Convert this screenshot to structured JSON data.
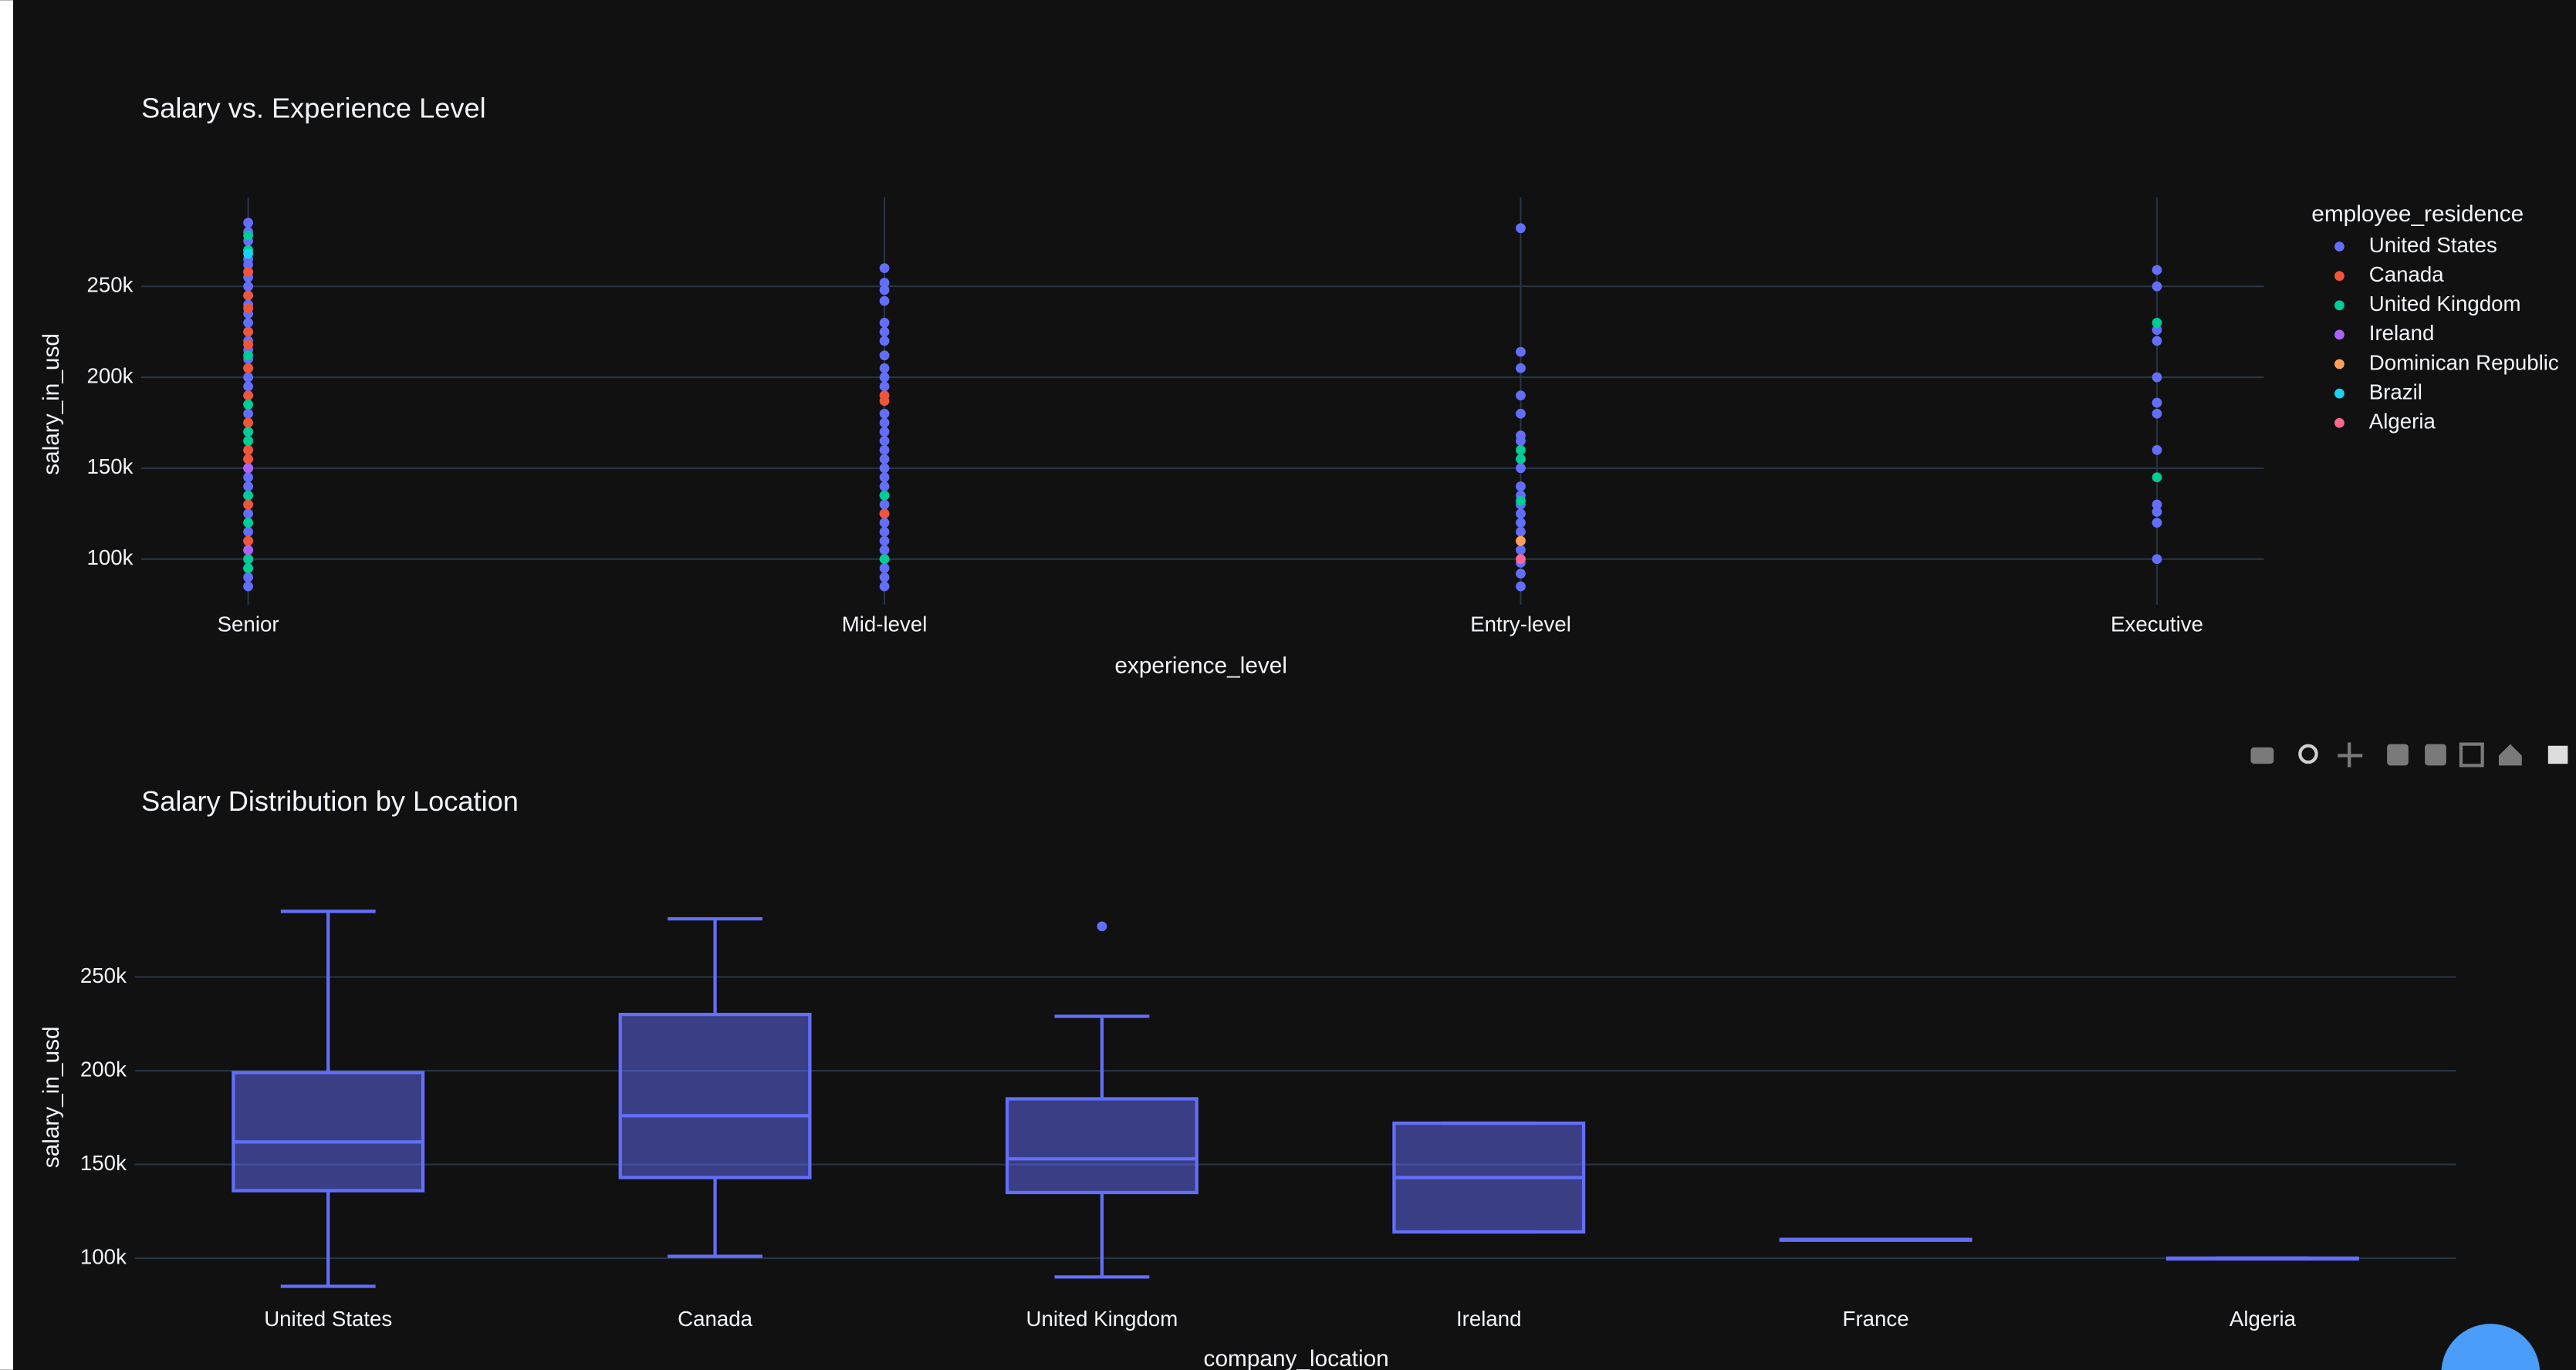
{
  "chart_data": [
    {
      "type": "scatter",
      "title": "Salary vs. Experience Level",
      "x_label": "experience_level",
      "y_label": "salary_in_usd",
      "legend_title": "employee_residence",
      "legend": "right",
      "grid": true,
      "categories": [
        "Senior",
        "Mid-level",
        "Entry-level",
        "Executive"
      ],
      "ylim": [
        75000,
        299000
      ],
      "yticks": [
        {
          "value": 100000,
          "label": "100k"
        },
        {
          "value": 150000,
          "label": "150k"
        },
        {
          "value": 200000,
          "label": "200k"
        },
        {
          "value": 250000,
          "label": "250k"
        }
      ],
      "series": [
        {
          "name": "United States",
          "color": "#636efa",
          "x": [
            "Senior",
            "Senior",
            "Senior",
            "Senior",
            "Senior",
            "Senior",
            "Senior",
            "Senior",
            "Senior",
            "Senior",
            "Senior",
            "Senior",
            "Senior",
            "Senior",
            "Senior",
            "Senior",
            "Senior",
            "Senior",
            "Senior",
            "Senior",
            "Senior",
            "Senior",
            "Senior",
            "Senior",
            "Senior",
            "Senior",
            "Senior",
            "Senior",
            "Senior",
            "Senior",
            "Senior",
            "Senior",
            "Senior",
            "Senior",
            "Senior",
            "Senior",
            "Senior",
            "Senior",
            "Senior",
            "Senior",
            "Senior",
            "Senior",
            "Mid-level",
            "Mid-level",
            "Mid-level",
            "Mid-level",
            "Mid-level",
            "Mid-level",
            "Mid-level",
            "Mid-level",
            "Mid-level",
            "Mid-level",
            "Mid-level",
            "Mid-level",
            "Mid-level",
            "Mid-level",
            "Mid-level",
            "Mid-level",
            "Mid-level",
            "Mid-level",
            "Mid-level",
            "Mid-level",
            "Mid-level",
            "Mid-level",
            "Mid-level",
            "Mid-level",
            "Mid-level",
            "Mid-level",
            "Mid-level",
            "Mid-level",
            "Mid-level",
            "Mid-level",
            "Mid-level",
            "Entry-level",
            "Entry-level",
            "Entry-level",
            "Entry-level",
            "Entry-level",
            "Entry-level",
            "Entry-level",
            "Entry-level",
            "Entry-level",
            "Entry-level",
            "Entry-level",
            "Entry-level",
            "Entry-level",
            "Entry-level",
            "Entry-level",
            "Entry-level",
            "Entry-level",
            "Entry-level",
            "Executive",
            "Executive",
            "Executive",
            "Executive",
            "Executive",
            "Executive",
            "Executive",
            "Executive",
            "Executive",
            "Executive",
            "Executive",
            "Executive"
          ],
          "values": [
            285000,
            280000,
            275000,
            270000,
            265000,
            262000,
            258000,
            255000,
            250000,
            245000,
            240000,
            235000,
            230000,
            225000,
            220000,
            215000,
            210000,
            205000,
            200000,
            195000,
            190000,
            185000,
            180000,
            175000,
            170000,
            165000,
            160000,
            155000,
            150000,
            145000,
            140000,
            135000,
            130000,
            125000,
            120000,
            115000,
            110000,
            105000,
            100000,
            95000,
            90000,
            85000,
            260000,
            252000,
            248000,
            242000,
            230000,
            225000,
            220000,
            212000,
            205000,
            200000,
            195000,
            180000,
            175000,
            170000,
            165000,
            160000,
            155000,
            150000,
            145000,
            140000,
            135000,
            130000,
            125000,
            120000,
            115000,
            110000,
            105000,
            100000,
            95000,
            90000,
            85000,
            282000,
            214000,
            205000,
            190000,
            180000,
            168000,
            165000,
            150000,
            140000,
            135000,
            130000,
            125000,
            120000,
            115000,
            105000,
            98000,
            92000,
            85000,
            259000,
            250000,
            226000,
            220000,
            200000,
            186000,
            180000,
            160000,
            130000,
            126000,
            120000,
            100000
          ]
        },
        {
          "name": "Canada",
          "color": "#EF553B",
          "x": [
            "Senior",
            "Senior",
            "Senior",
            "Senior",
            "Senior",
            "Senior",
            "Senior",
            "Senior",
            "Senior",
            "Senior",
            "Senior",
            "Senior",
            "Mid-level",
            "Mid-level",
            "Mid-level"
          ],
          "values": [
            258000,
            245000,
            238000,
            225000,
            218000,
            205000,
            190000,
            175000,
            160000,
            155000,
            130000,
            110000,
            190000,
            187000,
            125000
          ]
        },
        {
          "name": "United Kingdom",
          "color": "#00cc96",
          "x": [
            "Senior",
            "Senior",
            "Senior",
            "Senior",
            "Senior",
            "Senior",
            "Senior",
            "Senior",
            "Senior",
            "Senior",
            "Senior",
            "Mid-level",
            "Mid-level",
            "Entry-level",
            "Entry-level",
            "Entry-level",
            "Executive",
            "Executive"
          ],
          "values": [
            278000,
            270000,
            212000,
            185000,
            170000,
            165000,
            150000,
            135000,
            120000,
            100000,
            95000,
            135000,
            100000,
            160000,
            155000,
            132000,
            230000,
            145000
          ]
        },
        {
          "name": "Ireland",
          "color": "#ab63fa",
          "x": [
            "Senior",
            "Senior"
          ],
          "values": [
            150000,
            105000
          ]
        },
        {
          "name": "Dominican Republic",
          "color": "#FFA15A",
          "x": [
            "Entry-level"
          ],
          "values": [
            110000
          ]
        },
        {
          "name": "Brazil",
          "color": "#19d3f3",
          "x": [
            "Senior"
          ],
          "values": [
            268000
          ]
        },
        {
          "name": "Algeria",
          "color": "#FF6692",
          "x": [
            "Entry-level"
          ],
          "values": [
            100000
          ]
        }
      ]
    },
    {
      "type": "box",
      "title": "Salary Distribution by Location",
      "x_label": "company_location",
      "y_label": "salary_in_usd",
      "color": "#636efa",
      "grid": true,
      "categories": [
        "United States",
        "Canada",
        "United Kingdom",
        "Ireland",
        "France",
        "Algeria"
      ],
      "ylim": [
        79000,
        298000
      ],
      "yticks": [
        {
          "value": 100000,
          "label": "100k"
        },
        {
          "value": 150000,
          "label": "150k"
        },
        {
          "value": 200000,
          "label": "200k"
        },
        {
          "value": 250000,
          "label": "250k"
        }
      ],
      "lowerfence": [
        85000,
        101000,
        90000,
        114000,
        110000,
        100000
      ],
      "q1": [
        136000,
        143000,
        135000,
        114000,
        110000,
        100000
      ],
      "median": [
        162000,
        176000,
        153000,
        143000,
        110000,
        100000
      ],
      "q3": [
        199000,
        230000,
        185000,
        172000,
        110000,
        100000
      ],
      "upperfence": [
        285000,
        281000,
        229000,
        172000,
        110000,
        100000
      ],
      "outliers": [
        [],
        [],
        [
          277000
        ],
        [],
        [],
        []
      ]
    }
  ]
}
